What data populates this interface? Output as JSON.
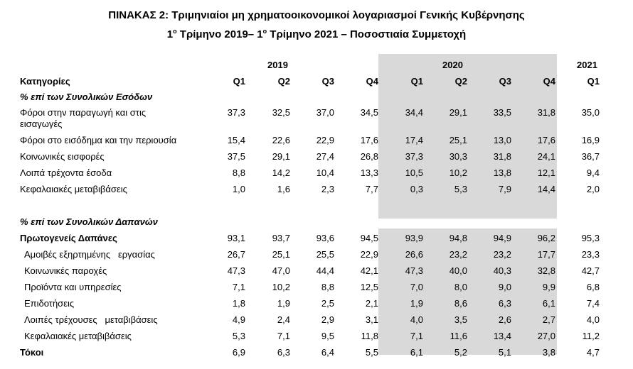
{
  "title_line1": "ΠΙΝΑΚΑΣ 2: Τριμηνιαίοι μη χρηματοοικονομικοί λογαριασμοί Γενικής Κυβέρνησης",
  "title_line2": "1ο Τρίμηνο 2019– 1ο Τρίμηνο 2021 – Ποσοστιαία Συμμετοχή",
  "years": [
    "2019",
    "2020",
    "2021"
  ],
  "header": {
    "category_label": "Κατηγορίες",
    "quarters": [
      "Q1",
      "Q2",
      "Q3",
      "Q4",
      "Q1",
      "Q2",
      "Q3",
      "Q4",
      "Q1"
    ]
  },
  "section_revenue": "% επί των Συνολικών Εσόδων",
  "section_expenditure": "% επί των Συνολικών Δαπανών",
  "rows": [
    {
      "label": "Φόροι στην παραγωγή και στις",
      "label2": "εισαγωγές",
      "values": [
        "37,3",
        "32,5",
        "37,0",
        "34,5",
        "34,4",
        "29,1",
        "33,5",
        "31,8",
        "35,0"
      ]
    },
    {
      "label": "Φόροι στο εισόδημα και την περιουσία",
      "values": [
        "15,4",
        "22,6",
        "22,9",
        "17,6",
        "17,4",
        "25,1",
        "13,0",
        "17,6",
        "16,9"
      ]
    },
    {
      "label": "Κοινωνικές εισφορές",
      "values": [
        "37,5",
        "29,1",
        "27,4",
        "26,8",
        "37,3",
        "30,3",
        "31,8",
        "24,1",
        "36,7"
      ]
    },
    {
      "label": "Λοιπά τρέχοντα έσοδα",
      "values": [
        "8,8",
        "14,2",
        "10,4",
        "13,3",
        "10,5",
        "10,2",
        "13,8",
        "12,1",
        "9,4"
      ]
    },
    {
      "label": "Κεφαλαιακές μεταβιβάσεις",
      "values": [
        "1,0",
        "1,6",
        "2,3",
        "7,7",
        "0,3",
        "5,3",
        "7,9",
        "14,4",
        "2,0"
      ]
    },
    {
      "label": "Πρωτογενείς Δαπάνες",
      "values": [
        "93,1",
        "93,7",
        "93,6",
        "94,5",
        "93,9",
        "94,8",
        "94,9",
        "96,2",
        "95,3"
      ]
    },
    {
      "label": "Αμοιβές εξηρτημένης   εργασίας",
      "values": [
        "26,7",
        "25,1",
        "25,5",
        "22,9",
        "26,6",
        "23,2",
        "23,2",
        "17,7",
        "23,3"
      ]
    },
    {
      "label": "Κοινωνικές παροχές",
      "values": [
        "47,3",
        "47,0",
        "44,4",
        "42,1",
        "47,3",
        "40,0",
        "40,3",
        "32,8",
        "42,7"
      ]
    },
    {
      "label": "Προϊόντα και υπηρεσίες",
      "values": [
        "7,1",
        "10,2",
        "8,8",
        "12,5",
        "7,0",
        "8,0",
        "9,0",
        "9,9",
        "6,8"
      ]
    },
    {
      "label": "Επιδοτήσεις",
      "values": [
        "1,8",
        "1,9",
        "2,5",
        "2,1",
        "1,9",
        "8,6",
        "6,3",
        "6,1",
        "7,4"
      ]
    },
    {
      "label": "Λοιπές τρέχουσες   μεταβιβάσεις",
      "values": [
        "4,9",
        "2,4",
        "2,9",
        "3,1",
        "4,0",
        "3,5",
        "2,6",
        "2,7",
        "4,0"
      ]
    },
    {
      "label": "Κεφαλαιακές μεταβιβάσεις",
      "values": [
        "5,3",
        "7,1",
        "9,5",
        "11,8",
        "7,1",
        "11,6",
        "13,4",
        "27,0",
        "11,2"
      ]
    },
    {
      "label": "Τόκοι",
      "values": [
        "6,9",
        "6,3",
        "6,4",
        "5,5",
        "6,1",
        "5,2",
        "5,1",
        "3,8",
        "4,7"
      ]
    }
  ]
}
